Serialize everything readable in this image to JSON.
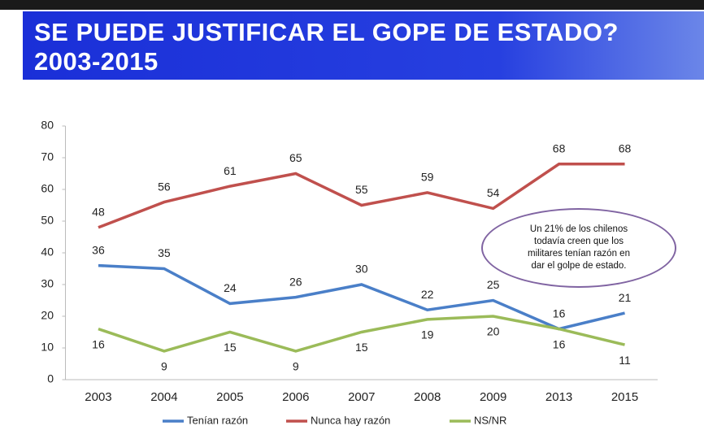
{
  "chart_data": {
    "type": "line",
    "title": "SE PUEDE JUSTIFICAR EL GOPE DE ESTADO?",
    "subtitle": "2003-2015",
    "categories": [
      "2003",
      "2004",
      "2005",
      "2006",
      "2007",
      "2008",
      "2009",
      "2013",
      "2015"
    ],
    "series": [
      {
        "name": "Tenían razón",
        "color": "#4a7fc8",
        "values": [
          36,
          35,
          24,
          26,
          30,
          22,
          25,
          16,
          21
        ]
      },
      {
        "name": "Nunca hay razón",
        "color": "#c0504d",
        "values": [
          48,
          56,
          61,
          65,
          55,
          59,
          54,
          68,
          68
        ]
      },
      {
        "name": "NS/NR",
        "color": "#9bbb59",
        "values": [
          16,
          9,
          15,
          9,
          15,
          19,
          20,
          16,
          11
        ]
      }
    ],
    "ylim": [
      0,
      80
    ],
    "yticks": [
      0,
      10,
      20,
      30,
      40,
      50,
      60,
      70,
      80
    ],
    "annotation": "Un 21% de los chilenos todavía creen que los militares tenían razón en dar el golpe de estado.",
    "legend": "bottom"
  }
}
